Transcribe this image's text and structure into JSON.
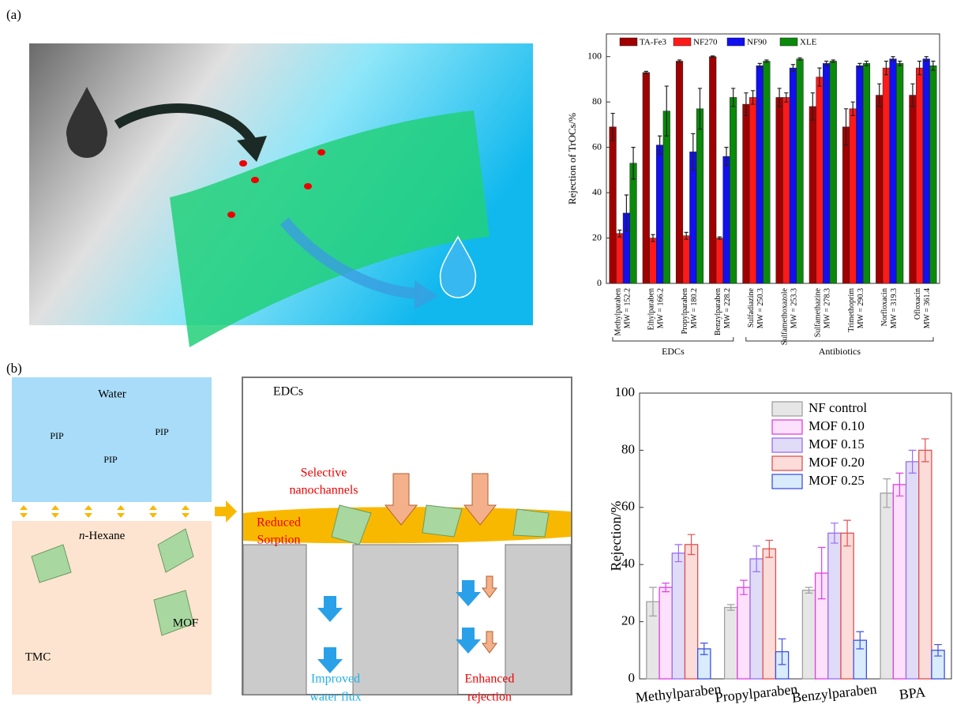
{
  "panels": [
    "(a)",
    "(b)"
  ],
  "illustration_a": {},
  "illustration_b": {
    "water": "Water",
    "pip": [
      "PIP",
      "PIP",
      "PIP"
    ],
    "hexane_prefix": "n",
    "hexane": "-Hexane",
    "mof": "MOF",
    "tmc": "TMC",
    "edcs": "EDCs",
    "selective": [
      "Selective",
      "nanochannels"
    ],
    "sorption": [
      "Reduced",
      "Sorption"
    ],
    "flux": [
      "Improved",
      "water flux"
    ],
    "rejection": [
      "Enhanced",
      "rejection"
    ]
  },
  "chart_data": [
    {
      "type": "bar",
      "y_label": "Rejection of TrOCs/%",
      "categories": [
        "Methylparaben",
        "Ethylparaben",
        "Propylparaben",
        "Benzylparaben",
        "Sulfadiazine",
        "Sulfamethoxazole",
        "Sulfamethazine",
        "Trimethoprim",
        "Norfloxacin",
        "Ofloxacin"
      ],
      "category_sublabels": [
        "MW = 152.2",
        "MW = 166.2",
        "MW = 180.2",
        "MW = 228.2",
        "MW = 250.3",
        "MW = 253.3",
        "MW = 278.3",
        "MW = 290.3",
        "MW = 319.3",
        "MW = 361.4"
      ],
      "groups": [
        "EDCs",
        "Antibiotics"
      ],
      "series": [
        {
          "name": "TA-Fe3",
          "color": "#a00000",
          "values": [
            69,
            93,
            98,
            100,
            79,
            82,
            78,
            69,
            83,
            83
          ],
          "errors": [
            6,
            0.5,
            0.5,
            0.3,
            5,
            4,
            6,
            8,
            5,
            5
          ]
        },
        {
          "name": "NF270",
          "color": "#ff1a1a",
          "values": [
            22,
            20,
            21,
            20,
            82,
            82,
            91,
            77,
            95,
            95
          ],
          "errors": [
            1.5,
            1.5,
            1.5,
            0.5,
            3,
            2,
            4,
            3,
            3,
            3
          ]
        },
        {
          "name": "NF90",
          "color": "#1010f0",
          "values": [
            31,
            61,
            58,
            56,
            96,
            95,
            97,
            96,
            99,
            99
          ],
          "errors": [
            8,
            4,
            8,
            4,
            1,
            1.5,
            1,
            1,
            1,
            1
          ]
        },
        {
          "name": "XLE",
          "color": "#0a8a0a",
          "values": [
            53,
            76,
            77,
            82,
            98,
            99,
            98,
            97,
            97,
            96
          ],
          "errors": [
            7,
            11,
            9,
            4,
            0.5,
            0.5,
            0.5,
            1,
            1,
            2
          ]
        }
      ],
      "ylim": [
        0,
        110
      ],
      "yticks": [
        0,
        20,
        40,
        60,
        80,
        100
      ],
      "legend": "top-left"
    },
    {
      "type": "bar",
      "y_label": "Rejection/%",
      "categories": [
        "Methylparaben",
        "Propylparaben",
        "Benzylparaben",
        "BPA"
      ],
      "series": [
        {
          "name": "NF control",
          "color": "#e6e6e6",
          "edge": "#a0a0a0",
          "values": [
            27,
            25,
            31,
            65
          ],
          "errors": [
            5,
            1,
            1,
            5
          ]
        },
        {
          "name": "MOF 0.10",
          "color": "#fce0fc",
          "edge": "#e040e0",
          "values": [
            32,
            32,
            37,
            68
          ],
          "errors": [
            1.5,
            2.5,
            9,
            4
          ]
        },
        {
          "name": "MOF 0.15",
          "color": "#e0dcf8",
          "edge": "#9a6cf0",
          "values": [
            44,
            42,
            51,
            76
          ],
          "errors": [
            3,
            4.5,
            3.5,
            4
          ]
        },
        {
          "name": "MOF 0.20",
          "color": "#fcdcd8",
          "edge": "#e05050",
          "values": [
            47,
            45.5,
            51,
            80
          ],
          "errors": [
            3.5,
            3,
            4.5,
            4
          ]
        },
        {
          "name": "MOF 0.25",
          "color": "#d8ecfc",
          "edge": "#4050e0",
          "values": [
            10.5,
            9.5,
            13.5,
            10
          ],
          "errors": [
            2,
            4.5,
            3,
            2
          ]
        }
      ],
      "ylim": [
        0,
        100
      ],
      "yticks": [
        0,
        20,
        40,
        60,
        80,
        100
      ],
      "legend": "top-right"
    }
  ]
}
